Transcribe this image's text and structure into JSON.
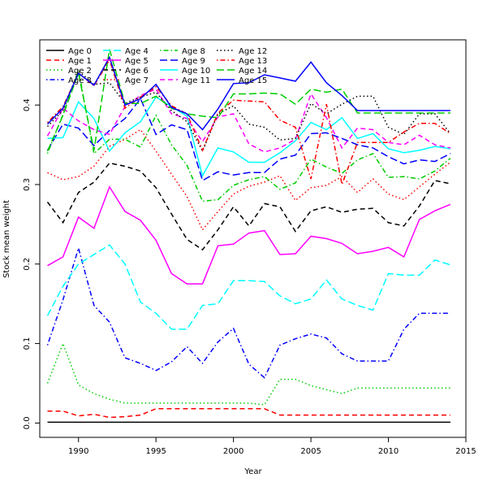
{
  "chart_data": {
    "type": "line",
    "title": "",
    "xlabel": "Year",
    "ylabel": "Stock mean weight",
    "xlim": [
      1987.5,
      2015
    ],
    "ylim": [
      -0.018,
      0.482
    ],
    "xticks": [
      1990,
      1995,
      2000,
      2005,
      2010,
      2015
    ],
    "yticks": [
      0.0,
      0.1,
      0.2,
      0.3,
      0.4
    ],
    "legend_position": "top-left",
    "legend_columns": 5,
    "x": [
      1988,
      1989,
      1990,
      1991,
      1992,
      1993,
      1994,
      1995,
      1996,
      1997,
      1998,
      1999,
      2000,
      2001,
      2002,
      2003,
      2004,
      2005,
      2006,
      2007,
      2008,
      2009,
      2010,
      2011,
      2012,
      2013,
      2014
    ],
    "series": [
      {
        "name": "Age 0",
        "color": "#000000",
        "dash": "solid",
        "values": [
          0.001,
          0.001,
          0.001,
          0.001,
          0.001,
          0.001,
          0.001,
          0.001,
          0.001,
          0.001,
          0.001,
          0.001,
          0.001,
          0.001,
          0.001,
          0.001,
          0.001,
          0.001,
          0.001,
          0.001,
          0.001,
          0.001,
          0.001,
          0.001,
          0.001,
          0.001,
          0.001
        ]
      },
      {
        "name": "Age 1",
        "color": "#ff0000",
        "dash": "dashed",
        "values": [
          0.015,
          0.015,
          0.009,
          0.011,
          0.007,
          0.008,
          0.01,
          0.018,
          0.018,
          0.018,
          0.018,
          0.018,
          0.018,
          0.018,
          0.018,
          0.01,
          0.01,
          0.01,
          0.01,
          0.01,
          0.01,
          0.01,
          0.01,
          0.01,
          0.01,
          0.01,
          0.01
        ]
      },
      {
        "name": "Age 2",
        "color": "#00cd00",
        "dash": "dotted",
        "values": [
          0.05,
          0.1,
          0.048,
          0.037,
          0.03,
          0.025,
          0.025,
          0.025,
          0.025,
          0.025,
          0.025,
          0.025,
          0.025,
          0.025,
          0.023,
          0.055,
          0.055,
          0.047,
          0.042,
          0.037,
          0.044,
          0.044,
          0.044,
          0.044,
          0.044,
          0.044,
          0.044
        ]
      },
      {
        "name": "Age 3",
        "color": "#0000ff",
        "dash": "dotdash",
        "values": [
          0.098,
          0.155,
          0.22,
          0.148,
          0.127,
          0.082,
          0.075,
          0.066,
          0.077,
          0.096,
          0.075,
          0.102,
          0.119,
          0.074,
          0.057,
          0.098,
          0.106,
          0.112,
          0.107,
          0.087,
          0.078,
          0.078,
          0.078,
          0.118,
          0.138,
          0.138,
          0.138
        ]
      },
      {
        "name": "Age 4",
        "color": "#00ffff",
        "dash": "longdash",
        "values": [
          0.135,
          0.172,
          0.2,
          0.212,
          0.224,
          0.2,
          0.152,
          0.138,
          0.118,
          0.118,
          0.148,
          0.15,
          0.179,
          0.179,
          0.178,
          0.16,
          0.15,
          0.156,
          0.18,
          0.156,
          0.148,
          0.142,
          0.188,
          0.186,
          0.186,
          0.205,
          0.199
        ]
      },
      {
        "name": "Age 5",
        "color": "#ff00ff",
        "dash": "solid",
        "values": [
          0.198,
          0.209,
          0.259,
          0.245,
          0.297,
          0.266,
          0.255,
          0.23,
          0.188,
          0.175,
          0.175,
          0.223,
          0.225,
          0.239,
          0.242,
          0.212,
          0.213,
          0.235,
          0.232,
          0.226,
          0.213,
          0.216,
          0.221,
          0.209,
          0.256,
          0.267,
          0.275
        ]
      },
      {
        "name": "Age 6",
        "color": "#000000",
        "dash": "dashed",
        "values": [
          0.278,
          0.252,
          0.29,
          0.303,
          0.327,
          0.323,
          0.317,
          0.296,
          0.263,
          0.231,
          0.218,
          0.243,
          0.272,
          0.248,
          0.276,
          0.272,
          0.241,
          0.267,
          0.272,
          0.265,
          0.269,
          0.27,
          0.252,
          0.248,
          0.273,
          0.305,
          0.301
        ]
      },
      {
        "name": "Age 7",
        "color": "#ff0000",
        "dash": "dotted",
        "values": [
          0.315,
          0.306,
          0.31,
          0.323,
          0.348,
          0.357,
          0.369,
          0.342,
          0.313,
          0.285,
          0.243,
          0.266,
          0.288,
          0.298,
          0.303,
          0.311,
          0.28,
          0.296,
          0.299,
          0.31,
          0.29,
          0.307,
          0.288,
          0.281,
          0.297,
          0.313,
          0.328
        ]
      },
      {
        "name": "Age 8",
        "color": "#00cd00",
        "dash": "dotdash",
        "values": [
          0.339,
          0.388,
          0.444,
          0.339,
          0.357,
          0.357,
          0.347,
          0.387,
          0.35,
          0.324,
          0.279,
          0.281,
          0.299,
          0.306,
          0.31,
          0.294,
          0.302,
          0.332,
          0.322,
          0.314,
          0.331,
          0.339,
          0.309,
          0.31,
          0.307,
          0.317,
          0.333
        ]
      },
      {
        "name": "Age 9",
        "color": "#0000ff",
        "dash": "longdash",
        "values": [
          0.343,
          0.376,
          0.371,
          0.349,
          0.368,
          0.383,
          0.408,
          0.363,
          0.375,
          0.369,
          0.305,
          0.316,
          0.312,
          0.315,
          0.315,
          0.332,
          0.337,
          0.364,
          0.365,
          0.358,
          0.35,
          0.346,
          0.335,
          0.326,
          0.331,
          0.329,
          0.339
        ]
      },
      {
        "name": "Age 10",
        "color": "#00ffff",
        "dash": "solid",
        "values": [
          0.358,
          0.359,
          0.404,
          0.383,
          0.342,
          0.365,
          0.379,
          0.41,
          0.398,
          0.386,
          0.311,
          0.346,
          0.341,
          0.328,
          0.328,
          0.34,
          0.355,
          0.378,
          0.369,
          0.384,
          0.358,
          0.364,
          0.345,
          0.34,
          0.343,
          0.348,
          0.345
        ]
      },
      {
        "name": "Age 11",
        "color": "#ff00ff",
        "dash": "dashed",
        "values": [
          0.361,
          0.396,
          0.38,
          0.369,
          0.363,
          0.398,
          0.412,
          0.42,
          0.389,
          0.383,
          0.354,
          0.385,
          0.389,
          0.351,
          0.341,
          0.346,
          0.357,
          0.414,
          0.384,
          0.346,
          0.371,
          0.369,
          0.353,
          0.35,
          0.362,
          0.35,
          0.346
        ]
      },
      {
        "name": "Age 12",
        "color": "#000000",
        "dash": "dotted",
        "values": [
          0.373,
          0.393,
          0.443,
          0.426,
          0.428,
          0.402,
          0.41,
          0.416,
          0.393,
          0.379,
          0.342,
          0.389,
          0.399,
          0.376,
          0.372,
          0.356,
          0.358,
          0.402,
          0.389,
          0.401,
          0.411,
          0.411,
          0.372,
          0.363,
          0.389,
          0.389,
          0.364
        ]
      },
      {
        "name": "Age 13",
        "color": "#ff0000",
        "dash": "dotdash",
        "values": [
          0.378,
          0.398,
          0.44,
          0.424,
          0.457,
          0.396,
          0.41,
          0.423,
          0.399,
          0.389,
          0.343,
          0.39,
          0.406,
          0.405,
          0.404,
          0.381,
          0.372,
          0.307,
          0.401,
          0.3,
          0.353,
          0.353,
          0.353,
          0.366,
          0.377,
          0.377,
          0.364
        ]
      },
      {
        "name": "Age 14",
        "color": "#00cd00",
        "dash": "longdash",
        "values": [
          0.342,
          0.387,
          0.44,
          0.343,
          0.47,
          0.402,
          0.402,
          0.411,
          0.396,
          0.389,
          0.386,
          0.384,
          0.414,
          0.414,
          0.415,
          0.414,
          0.401,
          0.42,
          0.416,
          0.42,
          0.39,
          0.39,
          0.39,
          0.39,
          0.39,
          0.39,
          0.39
        ]
      },
      {
        "name": "Age 15",
        "color": "#0000ff",
        "dash": "solid",
        "values": [
          0.376,
          0.396,
          0.44,
          0.425,
          0.46,
          0.4,
          0.408,
          0.426,
          0.397,
          0.389,
          0.369,
          0.395,
          0.427,
          0.428,
          0.438,
          0.434,
          0.43,
          0.454,
          0.428,
          0.412,
          0.393,
          0.393,
          0.393,
          0.393,
          0.393,
          0.393,
          0.393
        ]
      }
    ]
  }
}
